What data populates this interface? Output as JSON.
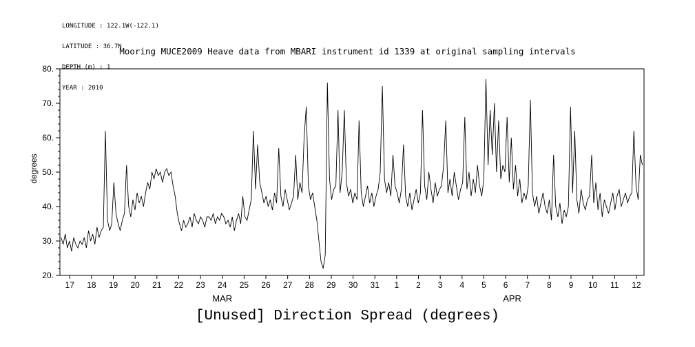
{
  "metadata": {
    "longitude": "LONGITUDE : 122.1W(-122.1)",
    "latitude": "LATITUDE : 36.7N",
    "depth": "DEPTH (m) : 1",
    "year": "YEAR : 2010"
  },
  "title": "Mooring MUCE2009 Heave data from MBARI instrument id 1339 at original sampling intervals",
  "caption": "[Unused] Direction Spread (degrees)",
  "chart_data": {
    "type": "line",
    "title": "Mooring MUCE2009 Heave data from MBARI instrument id 1339 at original sampling intervals",
    "xlabel": "",
    "ylabel": "degrees",
    "ylim": [
      20,
      80
    ],
    "y_ticks": [
      20,
      30,
      40,
      50,
      60,
      70,
      80
    ],
    "y_tick_labels": [
      "20.",
      "30.",
      "40.",
      "50.",
      "60.",
      "70.",
      "80."
    ],
    "y_minor_step": 2,
    "xlim": [
      16.55,
      43.35
    ],
    "x_ticks": [
      17,
      18,
      19,
      20,
      21,
      22,
      23,
      24,
      25,
      26,
      27,
      28,
      29,
      30,
      31,
      32,
      33,
      34,
      35,
      36,
      37,
      38,
      39,
      40,
      41,
      42,
      43
    ],
    "x_tick_labels": [
      "17",
      "18",
      "19",
      "20",
      "21",
      "22",
      "23",
      "24",
      "25",
      "26",
      "27",
      "28",
      "29",
      "30",
      "31",
      "1",
      "2",
      "3",
      "4",
      "5",
      "6",
      "7",
      "8",
      "9",
      "10",
      "11",
      "12"
    ],
    "month_labels": [
      {
        "label": "MAR",
        "x": 24.0
      },
      {
        "label": "APR",
        "x": 37.3
      }
    ],
    "grid": false,
    "legend": "none",
    "line_color": "#000000",
    "x_start": 16.6,
    "x_step": 0.097,
    "values": [
      31,
      29,
      32,
      28,
      30,
      27,
      31,
      29,
      28,
      30,
      29,
      31,
      28,
      33,
      30,
      32,
      29,
      34,
      31,
      33,
      34,
      62,
      36,
      33,
      35,
      47,
      38,
      35,
      33,
      36,
      38,
      52,
      40,
      37,
      42,
      39,
      44,
      41,
      43,
      40,
      44,
      47,
      45,
      50,
      48,
      51,
      49,
      50,
      47,
      50,
      51,
      49,
      50,
      46,
      43,
      38,
      35,
      33,
      36,
      34,
      35,
      37,
      34,
      38,
      36,
      35,
      37,
      36,
      34,
      37,
      37,
      36,
      38,
      35,
      37,
      36,
      38,
      37,
      35,
      36,
      34,
      37,
      33,
      36,
      38,
      35,
      43,
      37,
      36,
      39,
      42,
      62,
      45,
      58,
      47,
      44,
      41,
      43,
      40,
      42,
      39,
      44,
      41,
      57,
      43,
      40,
      45,
      42,
      39,
      41,
      43,
      55,
      42,
      47,
      44,
      60,
      69,
      46,
      42,
      44,
      40,
      36,
      30,
      24,
      22,
      26,
      76,
      48,
      42,
      45,
      46,
      68,
      44,
      50,
      68,
      47,
      43,
      45,
      41,
      44,
      42,
      65,
      44,
      40,
      43,
      46,
      41,
      44,
      40,
      43,
      45,
      50,
      75,
      48,
      44,
      47,
      43,
      55,
      46,
      44,
      41,
      45,
      58,
      43,
      40,
      44,
      39,
      42,
      45,
      41,
      44,
      68,
      46,
      42,
      50,
      45,
      41,
      47,
      43,
      45,
      46,
      52,
      65,
      44,
      48,
      43,
      50,
      46,
      42,
      45,
      47,
      66,
      45,
      50,
      43,
      48,
      44,
      52,
      46,
      43,
      48,
      77,
      52,
      68,
      55,
      70,
      50,
      65,
      48,
      52,
      50,
      66,
      47,
      60,
      45,
      52,
      43,
      48,
      41,
      44,
      42,
      46,
      71,
      44,
      40,
      43,
      38,
      41,
      44,
      40,
      38,
      42,
      36,
      55,
      40,
      37,
      41,
      35,
      39,
      37,
      40,
      69,
      44,
      62,
      42,
      38,
      45,
      41,
      39,
      42,
      43,
      55,
      41,
      47,
      39,
      44,
      37,
      42,
      40,
      38,
      41,
      44,
      39,
      43,
      45,
      40,
      42,
      44,
      41,
      43,
      44,
      62,
      46,
      42,
      55,
      52
    ]
  }
}
